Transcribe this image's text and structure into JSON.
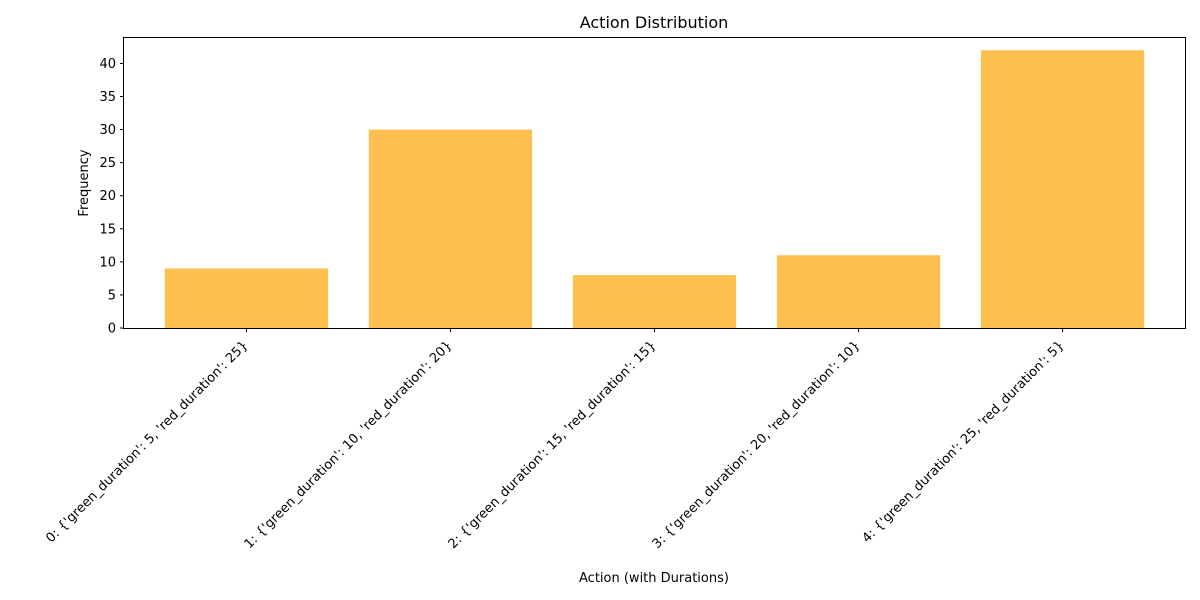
{
  "chart_data": {
    "type": "bar",
    "title": "Action Distribution",
    "xlabel": "Action (with Durations)",
    "ylabel": "Frequency",
    "categories": [
      "0: {'green_duration': 5, 'red_duration': 25}",
      "1: {'green_duration': 10, 'red_duration': 20}",
      "2: {'green_duration': 15, 'red_duration': 15}",
      "3: {'green_duration': 20, 'red_duration': 10}",
      "4: {'green_duration': 25, 'red_duration': 5}"
    ],
    "values": [
      9,
      30,
      8,
      11,
      42
    ],
    "ylim": [
      0,
      44
    ],
    "yticks": [
      0,
      5,
      10,
      15,
      20,
      25,
      30,
      35,
      40
    ],
    "bar_color": "#febf4e",
    "grid": false,
    "legend": false
  }
}
